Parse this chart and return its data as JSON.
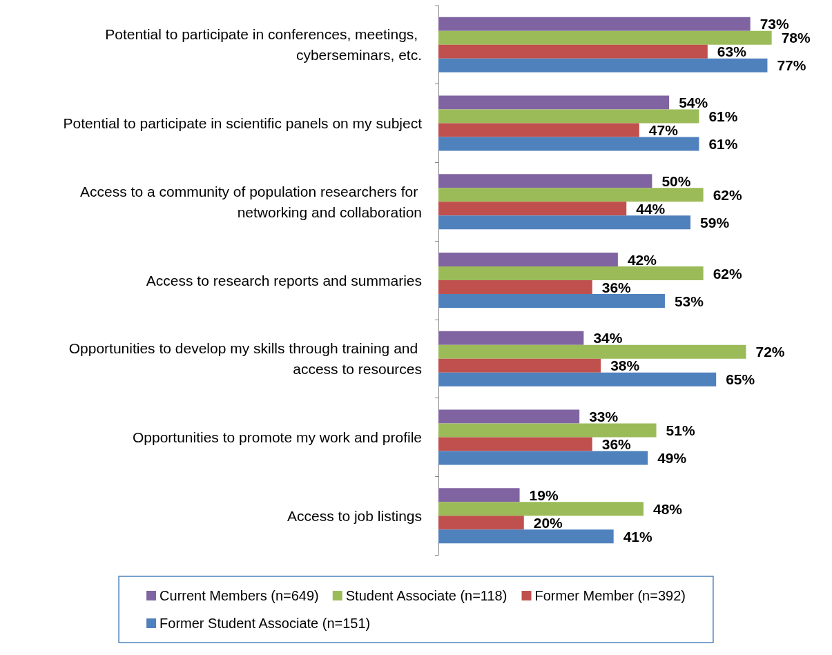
{
  "chart_data": {
    "type": "bar",
    "orientation": "horizontal",
    "categories": [
      "Potential to participate in conferences, meetings, cyberseminars, etc.",
      "Potential to participate in scientific panels on my subject",
      "Access to a community of population researchers for networking and collaboration",
      "Access to research reports and summaries",
      "Opportunities to develop my skills through training and access to resources",
      "Opportunities to promote my work and profile",
      "Access to job listings"
    ],
    "series": [
      {
        "name": "Current Members (n=649)",
        "color": "#8064a2",
        "values": [
          73,
          54,
          50,
          42,
          34,
          33,
          19
        ],
        "value_labels": [
          "73%",
          "54%",
          "50%",
          "42%",
          "34%",
          "33%",
          "19%"
        ]
      },
      {
        "name": "Student Associate (n=118)",
        "color": "#9bbb59",
        "values": [
          78,
          61,
          62,
          62,
          72,
          51,
          48
        ],
        "value_labels": [
          "78%",
          "61%",
          "62%",
          "62%",
          "72%",
          "51%",
          "48%"
        ]
      },
      {
        "name": "Former Member (n=392)",
        "color": "#c0504d",
        "values": [
          63,
          47,
          44,
          36,
          38,
          36,
          20
        ],
        "value_labels": [
          "63%",
          "47%",
          "44%",
          "36%",
          "38%",
          "36%",
          "20%"
        ]
      },
      {
        "name": "Former Student Associate (n=151)",
        "color": "#4f81bd",
        "values": [
          77,
          61,
          59,
          53,
          65,
          49,
          41
        ],
        "value_labels": [
          "77%",
          "61%",
          "59%",
          "53%",
          "65%",
          "49%",
          "41%"
        ]
      }
    ],
    "legend": "bottom",
    "grid": false
  }
}
